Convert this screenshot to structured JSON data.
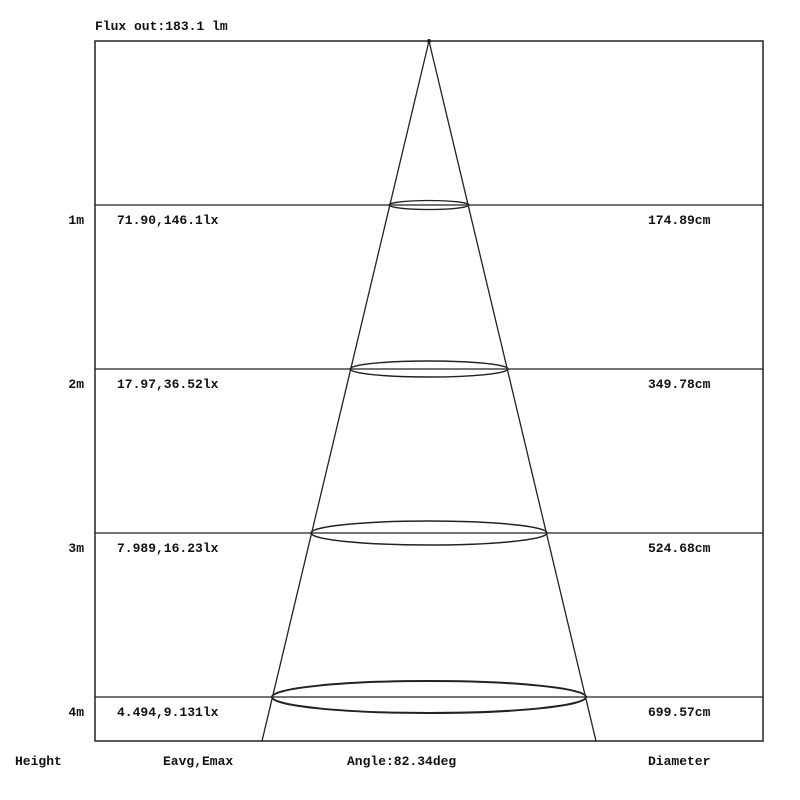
{
  "title": "Flux out:183.1 lm",
  "rows": [
    {
      "height": "1m",
      "illuminance": "71.90,146.1lx",
      "diameter": "174.89cm"
    },
    {
      "height": "2m",
      "illuminance": "17.97,36.52lx",
      "diameter": "349.78cm"
    },
    {
      "height": "3m",
      "illuminance": "7.989,16.23lx",
      "diameter": "524.68cm"
    },
    {
      "height": "4m",
      "illuminance": "4.494,9.131lx",
      "diameter": "699.57cm"
    }
  ],
  "footer": {
    "height_label": "Height",
    "illuminance_label": "Eavg,Emax",
    "angle_label": "Angle:82.34deg",
    "diameter_label": "Diameter"
  }
}
